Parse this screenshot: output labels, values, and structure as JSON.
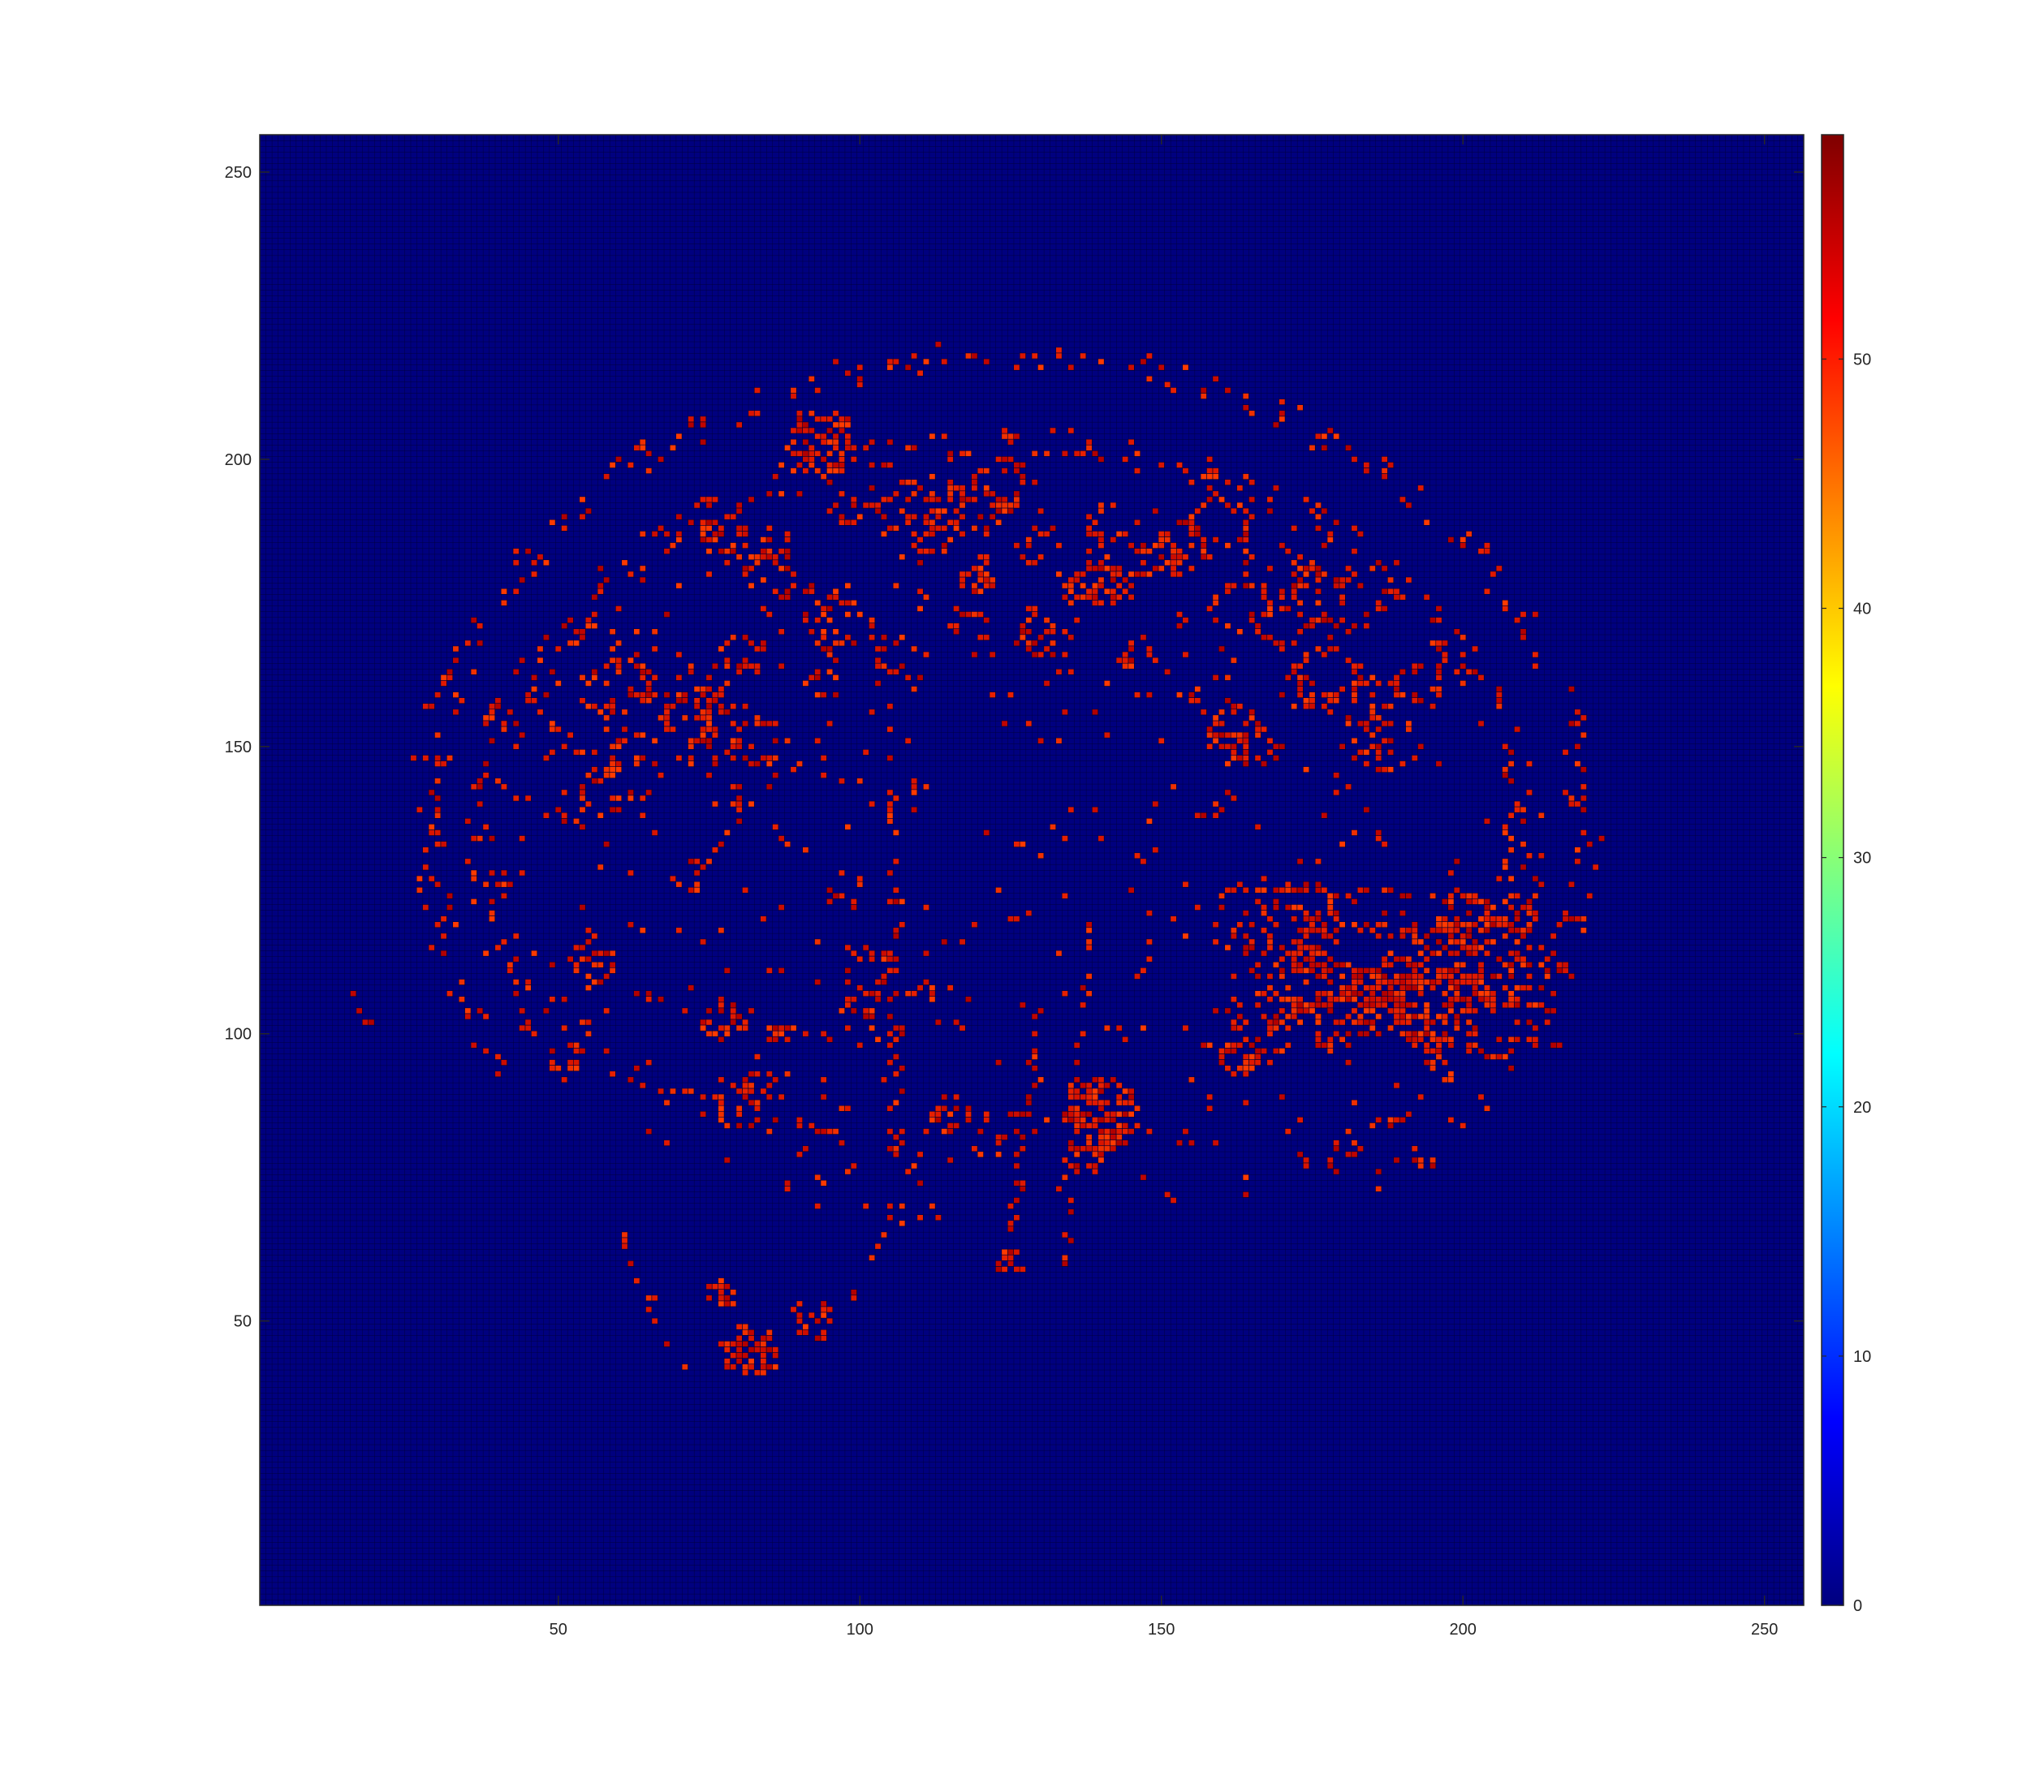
{
  "chart_data": {
    "type": "heatmap",
    "title": "",
    "xlabel": "",
    "ylabel": "",
    "xlim": [
      1,
      256
    ],
    "ylim": [
      1,
      256
    ],
    "x_ticks": [
      "50",
      "100",
      "150",
      "200",
      "250"
    ],
    "y_ticks": [
      "50",
      "100",
      "150",
      "200",
      "250"
    ],
    "grid": true,
    "grid_cells": [
      256,
      256
    ],
    "background_value": 0,
    "colormap": "jet",
    "colorbar": {
      "position": "right",
      "limits": [
        0,
        59
      ],
      "ticks": [
        "0",
        "10",
        "20",
        "30",
        "40",
        "50"
      ]
    },
    "shape_description": "sagittal brain slice edge map",
    "cell_value_range": [
      48,
      59
    ],
    "colors": {
      "background_cell": "#00007f",
      "cell_edge": "#000033",
      "high": "#e01800",
      "highest": "#b20000",
      "axis": "#262626"
    }
  }
}
